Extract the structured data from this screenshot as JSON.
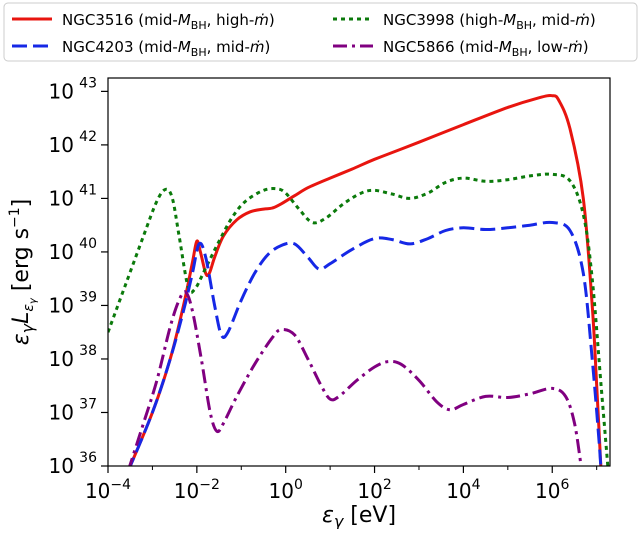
{
  "chart_data": {
    "type": "line",
    "xlabel": "ε_γ [eV]",
    "ylabel": "ε_γ L_εγ [erg s⁻¹]",
    "xscale": "log",
    "yscale": "log",
    "xlim_exp": [
      -4,
      7.3
    ],
    "ylim_exp": [
      36,
      43.25
    ],
    "x_tick_exponents": [
      -4,
      -2,
      0,
      2,
      4,
      6
    ],
    "y_tick_exponents": [
      36,
      37,
      38,
      39,
      40,
      41,
      42,
      43
    ],
    "tick_base": "10",
    "grid": false,
    "legend_position": "top, above plot, two columns",
    "series": [
      {
        "name": "NGC3516 (mid-M_BH, high-ṁ)",
        "name_parts": {
          "obj": "NGC3516 (mid-",
          "m": "M",
          "sub": "BH",
          "rest": ", high-",
          "mdot": "ṁ",
          "close": ")"
        },
        "color": "#e8150f",
        "dash": "",
        "points_log": [
          [
            -3.55,
            35.9
          ],
          [
            -3.0,
            37.0
          ],
          [
            -2.6,
            38.0
          ],
          [
            -2.3,
            39.0
          ],
          [
            -2.1,
            39.8
          ],
          [
            -2.0,
            40.2
          ],
          [
            -1.92,
            40.0
          ],
          [
            -1.8,
            39.6
          ],
          [
            -1.72,
            39.6
          ],
          [
            -1.6,
            39.9
          ],
          [
            -1.4,
            40.3
          ],
          [
            -1.1,
            40.6
          ],
          [
            -0.8,
            40.75
          ],
          [
            -0.5,
            40.8
          ],
          [
            -0.3,
            40.82
          ],
          [
            -0.1,
            40.9
          ],
          [
            0.2,
            41.05
          ],
          [
            0.5,
            41.2
          ],
          [
            1.0,
            41.38
          ],
          [
            1.5,
            41.55
          ],
          [
            2.0,
            41.73
          ],
          [
            3.0,
            42.05
          ],
          [
            4.0,
            42.38
          ],
          [
            5.0,
            42.7
          ],
          [
            5.7,
            42.88
          ],
          [
            6.0,
            42.92
          ],
          [
            6.15,
            42.83
          ],
          [
            6.4,
            42.3
          ],
          [
            6.7,
            41.0
          ],
          [
            6.9,
            39.0
          ],
          [
            7.0,
            37.5
          ],
          [
            7.1,
            35.9
          ]
        ]
      },
      {
        "name": "NGC3998 (high-M_BH, mid-ṁ)",
        "name_parts": {
          "obj": "NGC3998 (high-",
          "m": "M",
          "sub": "BH",
          "rest": ", mid-",
          "mdot": "ṁ",
          "close": ")"
        },
        "color": "#0b7a0b",
        "dash": "4 4",
        "points_log": [
          [
            -4.0,
            38.5
          ],
          [
            -3.6,
            39.4
          ],
          [
            -3.2,
            40.3
          ],
          [
            -2.9,
            40.95
          ],
          [
            -2.7,
            41.17
          ],
          [
            -2.55,
            41.0
          ],
          [
            -2.4,
            40.3
          ],
          [
            -2.2,
            39.35
          ],
          [
            -2.05,
            39.3
          ],
          [
            -1.8,
            39.7
          ],
          [
            -1.5,
            40.2
          ],
          [
            -1.2,
            40.65
          ],
          [
            -0.9,
            40.95
          ],
          [
            -0.5,
            41.15
          ],
          [
            -0.2,
            41.18
          ],
          [
            0.0,
            41.1
          ],
          [
            0.3,
            40.8
          ],
          [
            0.6,
            40.55
          ],
          [
            0.9,
            40.63
          ],
          [
            1.3,
            40.9
          ],
          [
            1.7,
            41.1
          ],
          [
            2.0,
            41.15
          ],
          [
            2.4,
            41.08
          ],
          [
            2.8,
            41.0
          ],
          [
            3.2,
            41.1
          ],
          [
            3.6,
            41.3
          ],
          [
            4.0,
            41.38
          ],
          [
            4.5,
            41.32
          ],
          [
            5.0,
            41.35
          ],
          [
            5.5,
            41.42
          ],
          [
            6.0,
            41.45
          ],
          [
            6.4,
            41.33
          ],
          [
            6.7,
            40.7
          ],
          [
            6.9,
            39.5
          ],
          [
            7.1,
            37.5
          ],
          [
            7.25,
            36.0
          ]
        ]
      },
      {
        "name": "NGC4203 (mid-M_BH, mid-ṁ)",
        "name_parts": {
          "obj": "NGC4203 (mid-",
          "m": "M",
          "sub": "BH",
          "rest": ", mid-",
          "mdot": "ṁ",
          "close": ")"
        },
        "color": "#1628e6",
        "dash": "15 6",
        "points_log": [
          [
            -3.55,
            35.9
          ],
          [
            -3.0,
            37.0
          ],
          [
            -2.6,
            38.0
          ],
          [
            -2.3,
            38.9
          ],
          [
            -2.1,
            39.6
          ],
          [
            -1.95,
            40.15
          ],
          [
            -1.8,
            39.9
          ],
          [
            -1.6,
            39.0
          ],
          [
            -1.45,
            38.45
          ],
          [
            -1.3,
            38.5
          ],
          [
            -1.0,
            39.1
          ],
          [
            -0.7,
            39.6
          ],
          [
            -0.4,
            39.95
          ],
          [
            -0.1,
            40.12
          ],
          [
            0.2,
            40.15
          ],
          [
            0.5,
            39.9
          ],
          [
            0.75,
            39.68
          ],
          [
            1.0,
            39.78
          ],
          [
            1.5,
            40.05
          ],
          [
            2.0,
            40.25
          ],
          [
            2.4,
            40.23
          ],
          [
            2.8,
            40.15
          ],
          [
            3.2,
            40.25
          ],
          [
            3.6,
            40.4
          ],
          [
            4.0,
            40.45
          ],
          [
            4.5,
            40.42
          ],
          [
            5.0,
            40.45
          ],
          [
            5.5,
            40.5
          ],
          [
            6.0,
            40.55
          ],
          [
            6.4,
            40.4
          ],
          [
            6.7,
            39.6
          ],
          [
            6.9,
            38.0
          ],
          [
            7.05,
            36.5
          ],
          [
            7.1,
            35.9
          ]
        ]
      },
      {
        "name": "NGC5866 (mid-M_BH, low-ṁ)",
        "name_parts": {
          "obj": "NGC5866 (mid-",
          "m": "M",
          "sub": "BH",
          "rest": ", low-",
          "mdot": "ṁ",
          "close": ")"
        },
        "color": "#800080",
        "dash": "14 5 3 5",
        "points_log": [
          [
            -3.55,
            35.9
          ],
          [
            -3.2,
            36.8
          ],
          [
            -2.9,
            37.6
          ],
          [
            -2.6,
            38.6
          ],
          [
            -2.4,
            39.1
          ],
          [
            -2.25,
            39.25
          ],
          [
            -2.1,
            38.9
          ],
          [
            -1.9,
            38.0
          ],
          [
            -1.7,
            37.0
          ],
          [
            -1.55,
            36.65
          ],
          [
            -1.4,
            36.8
          ],
          [
            -1.1,
            37.3
          ],
          [
            -0.7,
            37.9
          ],
          [
            -0.3,
            38.4
          ],
          [
            -0.1,
            38.55
          ],
          [
            0.2,
            38.45
          ],
          [
            0.5,
            38.0
          ],
          [
            0.8,
            37.5
          ],
          [
            1.0,
            37.25
          ],
          [
            1.2,
            37.3
          ],
          [
            1.6,
            37.6
          ],
          [
            2.0,
            37.85
          ],
          [
            2.3,
            37.95
          ],
          [
            2.6,
            37.9
          ],
          [
            3.0,
            37.6
          ],
          [
            3.4,
            37.2
          ],
          [
            3.7,
            37.05
          ],
          [
            4.0,
            37.15
          ],
          [
            4.5,
            37.3
          ],
          [
            5.0,
            37.28
          ],
          [
            5.5,
            37.35
          ],
          [
            6.0,
            37.45
          ],
          [
            6.3,
            37.3
          ],
          [
            6.5,
            36.8
          ],
          [
            6.65,
            36.0
          ]
        ]
      }
    ]
  }
}
